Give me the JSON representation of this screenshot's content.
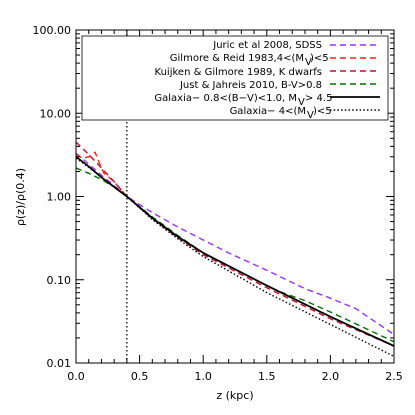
{
  "chart_data": {
    "type": "line",
    "xlabel": "z (kpc)",
    "ylabel": "ρ(z)/ρ(0.4)",
    "xlim": [
      0.0,
      2.5
    ],
    "ylim": [
      0.01,
      100.0
    ],
    "yscale": "log",
    "grid": false,
    "legend_position": "top-right",
    "x_ticks": [
      "0.0",
      "0.5",
      "1.0",
      "1.5",
      "2.0",
      "2.5"
    ],
    "y_ticks": [
      "0.01",
      "0.10",
      "1.00",
      "10.00",
      "100.00"
    ],
    "reference_line_x": 0.4,
    "series": [
      {
        "name": "Juric et al 2008, SDSS",
        "color": "#9b30ff",
        "dash": "dashed",
        "x": [
          0.0,
          0.1,
          0.2,
          0.3,
          0.4,
          0.5,
          0.6,
          0.8,
          1.0,
          1.2,
          1.5,
          1.8,
          2.0,
          2.2,
          2.5
        ],
        "y": [
          3.3,
          2.45,
          1.8,
          1.35,
          1.0,
          0.8,
          0.64,
          0.43,
          0.3,
          0.21,
          0.13,
          0.078,
          0.06,
          0.045,
          0.022
        ]
      },
      {
        "name": "Gilmore & Reid 1983,4<(M_V)<5",
        "color": "#ff2020",
        "dash": "dashed",
        "x": [
          0.0,
          0.05,
          0.1,
          0.15,
          0.18,
          0.22,
          0.3,
          0.4,
          0.6,
          0.8,
          1.0,
          1.5,
          2.0,
          2.5
        ],
        "y": [
          3.2,
          2.9,
          3.0,
          3.4,
          2.6,
          1.9,
          1.5,
          1.0,
          0.55,
          0.33,
          0.21,
          0.085,
          0.036,
          0.016
        ]
      },
      {
        "name": "Kuijken & Gilmore 1989, K dwarfs",
        "color": "#c01030",
        "dash": "dashed",
        "x": [
          0.0,
          0.1,
          0.2,
          0.3,
          0.4,
          0.6,
          0.8,
          1.0,
          1.5,
          2.0,
          2.5
        ],
        "y": [
          4.5,
          3.2,
          2.2,
          1.5,
          1.0,
          0.54,
          0.32,
          0.2,
          0.08,
          0.034,
          0.016
        ]
      },
      {
        "name": "Just & Jahreis 2010, B-V>0.8",
        "color": "#007000",
        "dash": "dashed",
        "x": [
          0.0,
          0.1,
          0.2,
          0.3,
          0.4,
          0.6,
          0.8,
          1.0,
          1.5,
          1.6,
          1.8,
          2.0,
          2.5
        ],
        "y": [
          2.2,
          1.9,
          1.6,
          1.3,
          1.0,
          0.57,
          0.34,
          0.21,
          0.085,
          0.072,
          0.056,
          0.041,
          0.018
        ]
      },
      {
        "name": "Galaxia- 0.8<(B-V)<1.0, M_V > 4.5",
        "color": "#000000",
        "dash": "solid",
        "x": [
          0.0,
          0.1,
          0.2,
          0.3,
          0.4,
          0.6,
          0.8,
          1.0,
          1.5,
          2.0,
          2.5
        ],
        "y": [
          3.0,
          2.3,
          1.7,
          1.3,
          1.0,
          0.55,
          0.33,
          0.21,
          0.085,
          0.036,
          0.016
        ]
      },
      {
        "name": "Galaxia- 4<(M_V)<5",
        "color": "#000000",
        "dash": "dotted",
        "x": [
          0.0,
          0.1,
          0.2,
          0.3,
          0.4,
          0.6,
          0.8,
          1.0,
          1.5,
          2.0,
          2.5
        ],
        "y": [
          2.9,
          2.25,
          1.7,
          1.3,
          1.0,
          0.53,
          0.31,
          0.19,
          0.07,
          0.029,
          0.012
        ]
      }
    ],
    "legend_labels": [
      "Juric et al 2008, SDSS",
      "Gilmore & Reid 1983,4<(M",
      "Kuijken & Gilmore 1989, K dwarfs",
      "Just & Jahreis 2010, B-V>0.8",
      "Galaxia− 0.8<(B−V)<1.0, M",
      "Galaxia−       4<(M"
    ]
  }
}
